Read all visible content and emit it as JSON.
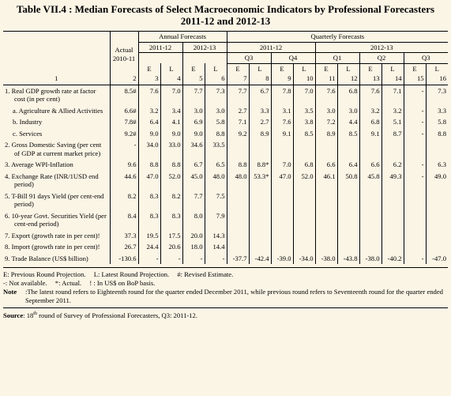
{
  "title": "Table VII.4 : Median Forecasts of Select Macroeconomic Indicators by Professional Forecasters 2011-12 and 2012-13",
  "header": {
    "actual": "Actual",
    "actual_year": "2010-11",
    "annual": "Annual Forecasts",
    "quarterly": "Quarterly Forecasts",
    "annual_years": [
      "2011-12",
      "2012-13"
    ],
    "quarterly_years": [
      "2011-12",
      "2012-13"
    ],
    "quarters": [
      "Q3",
      "Q4",
      "Q1",
      "Q2",
      "Q3"
    ],
    "el": [
      "E",
      "L",
      "E",
      "L",
      "E",
      "L",
      "E",
      "L",
      "E",
      "L",
      "E",
      "L",
      "E",
      "L"
    ],
    "column_numbers": [
      1,
      2,
      3,
      4,
      5,
      6,
      7,
      8,
      9,
      10,
      11,
      12,
      13,
      14,
      15,
      16
    ]
  },
  "rows": [
    {
      "num": "1.",
      "label": "Real GDP growth rate at factor cost (in per cent)",
      "values": [
        "8.5#",
        "7.6",
        "7.0",
        "7.7",
        "7.3",
        "7.7",
        "6.7",
        "7.8",
        "7.0",
        "7.6",
        "6.8",
        "7.6",
        "7.1",
        "-",
        "7.3"
      ]
    },
    {
      "num": "a.",
      "label": "Agriculture & Allied Activities",
      "values": [
        "6.6#",
        "3.2",
        "3.4",
        "3.0",
        "3.0",
        "2.7",
        "3.3",
        "3.1",
        "3.5",
        "3.0",
        "3.0",
        "3.2",
        "3.2",
        "-",
        "3.3"
      ]
    },
    {
      "num": "b.",
      "label": "Industry",
      "values": [
        "7.8#",
        "6.4",
        "4.1",
        "6.9",
        "5.8",
        "7.1",
        "2.7",
        "7.6",
        "3.8",
        "7.2",
        "4.4",
        "6.8",
        "5.1",
        "-",
        "5.8"
      ]
    },
    {
      "num": "c.",
      "label": "Services",
      "values": [
        "9.2#",
        "9.0",
        "9.0",
        "9.0",
        "8.8",
        "9.2",
        "8.9",
        "9.1",
        "8.5",
        "8.9",
        "8.5",
        "9.1",
        "8.7",
        "-",
        "8.8"
      ]
    },
    {
      "num": "2.",
      "label": "Gross Domestic Saving (per cent of GDP at current market price)",
      "values": [
        "-",
        "34.0",
        "33.0",
        "34.6",
        "33.5"
      ]
    },
    {
      "num": "3.",
      "label": "Average WPI-Inflation",
      "values": [
        "9.6",
        "8.8",
        "8.8",
        "6.7",
        "6.5",
        "8.8",
        "8.8*",
        "7.0",
        "6.8",
        "6.6",
        "6.4",
        "6.6",
        "6.2",
        "-",
        "6.3"
      ]
    },
    {
      "num": "4.",
      "label": "Exchange Rate (INR/1USD end period)",
      "values": [
        "44.6",
        "47.0",
        "52.0",
        "45.0",
        "48.0",
        "48.0",
        "53.3*",
        "47.0",
        "52.0",
        "46.1",
        "50.8",
        "45.8",
        "49.3",
        "-",
        "49.0"
      ]
    },
    {
      "num": "5.",
      "label": "T-Bill 91 days Yield (per cent-end period)",
      "values": [
        "8.2",
        "8.3",
        "8.2",
        "7.7",
        "7.5"
      ]
    },
    {
      "num": "6.",
      "label": "10-year Govt. Securities Yield (per cent-end period)",
      "values": [
        "8.4",
        "8.3",
        "8.3",
        "8.0",
        "7.9"
      ]
    },
    {
      "num": "7.",
      "label": "Export (growth rate in per cent)!",
      "values": [
        "37.3",
        "19.5",
        "17.5",
        "20.0",
        "14.3"
      ]
    },
    {
      "num": "8.",
      "label": "Import (growth rate in per cent)!",
      "values": [
        "26.7",
        "24.4",
        "20.6",
        "18.0",
        "14.4"
      ]
    },
    {
      "num": "9.",
      "label": "Trade Balance (US$ billion)",
      "values": [
        "-130.6",
        "-",
        "-",
        "-",
        "-",
        "-37.7",
        "-42.4",
        "-39.0",
        "-34.0",
        "-38.0",
        "-43.8",
        "-38.0",
        "-40.2",
        "-",
        "-47.0"
      ]
    }
  ],
  "legend": [
    "E: Previous Round Projection.",
    "L: Latest Round Projection.",
    "#: Revised Estimate.",
    "-: Not available.",
    "*: Actual.",
    "! : In US$ on BoP basis."
  ],
  "note": {
    "label": "Note",
    "text": ":The latest round refers to Eighteenth round for the quarter ended December 2011, while previous round refers to Seventeenth round for the quarter ended September 2011."
  },
  "source": {
    "label": "Source",
    "prefix": ": 18",
    "sup": "th",
    "text": " round of Survey of Professional Forecasters, Q3: 2011-12."
  }
}
